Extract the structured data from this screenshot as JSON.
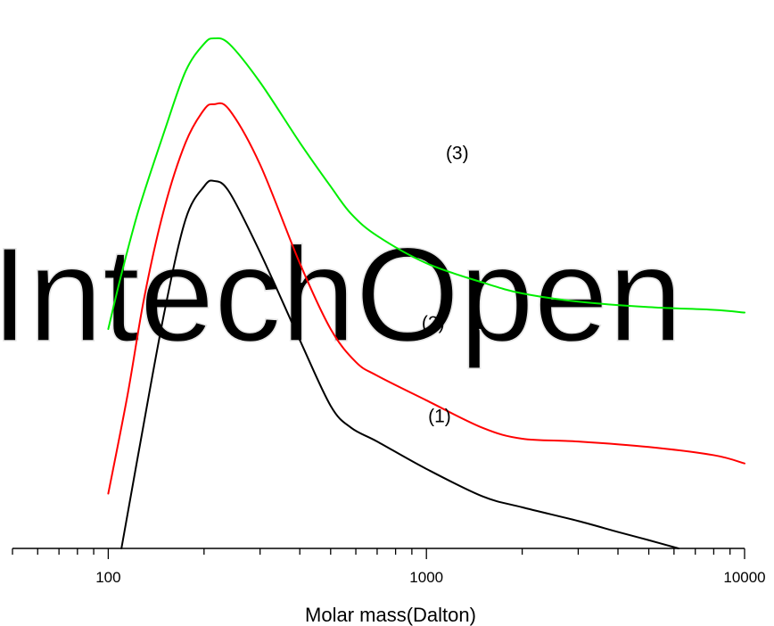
{
  "watermark": "IntechOpen",
  "chart_data": {
    "type": "line",
    "xscale": "log",
    "xlim": [
      50,
      10000
    ],
    "xlabel": "Molar mass(Dalton)",
    "ylabel": "",
    "x_tick_labels": [
      "100",
      "1000",
      "10000"
    ],
    "x_ticks": [
      100,
      1000,
      10000
    ],
    "y_axis_visible": false,
    "grid": false,
    "ylim": [
      0,
      1.0
    ],
    "series": [
      {
        "name": "(1)",
        "color": "#000000",
        "points": [
          [
            110,
            0.0
          ],
          [
            125,
            0.18
          ],
          [
            150,
            0.43
          ],
          [
            175,
            0.6
          ],
          [
            200,
            0.66
          ],
          [
            215,
            0.67
          ],
          [
            240,
            0.65
          ],
          [
            300,
            0.54
          ],
          [
            400,
            0.38
          ],
          [
            500,
            0.26
          ],
          [
            580,
            0.22
          ],
          [
            700,
            0.195
          ],
          [
            1000,
            0.145
          ],
          [
            1500,
            0.095
          ],
          [
            2000,
            0.075
          ],
          [
            3000,
            0.05
          ],
          [
            4000,
            0.03
          ],
          [
            5000,
            0.015
          ],
          [
            6200,
            0.0
          ]
        ]
      },
      {
        "name": "(2)",
        "color": "#ff0000",
        "points": [
          [
            100,
            0.1
          ],
          [
            115,
            0.28
          ],
          [
            130,
            0.46
          ],
          [
            150,
            0.62
          ],
          [
            175,
            0.74
          ],
          [
            200,
            0.8
          ],
          [
            215,
            0.81
          ],
          [
            240,
            0.8
          ],
          [
            300,
            0.7
          ],
          [
            400,
            0.52
          ],
          [
            500,
            0.4
          ],
          [
            600,
            0.34
          ],
          [
            700,
            0.315
          ],
          [
            1000,
            0.27
          ],
          [
            1500,
            0.22
          ],
          [
            2000,
            0.2
          ],
          [
            3000,
            0.195
          ],
          [
            5000,
            0.185
          ],
          [
            8000,
            0.17
          ],
          [
            10000,
            0.155
          ]
        ]
      },
      {
        "name": "(3)",
        "color": "#00ee00",
        "points": [
          [
            100,
            0.4
          ],
          [
            110,
            0.5
          ],
          [
            125,
            0.62
          ],
          [
            150,
            0.76
          ],
          [
            175,
            0.87
          ],
          [
            200,
            0.92
          ],
          [
            215,
            0.93
          ],
          [
            240,
            0.92
          ],
          [
            300,
            0.85
          ],
          [
            400,
            0.74
          ],
          [
            500,
            0.66
          ],
          [
            580,
            0.61
          ],
          [
            700,
            0.57
          ],
          [
            1000,
            0.52
          ],
          [
            1500,
            0.485
          ],
          [
            2000,
            0.465
          ],
          [
            3000,
            0.45
          ],
          [
            5000,
            0.44
          ],
          [
            8000,
            0.435
          ],
          [
            10000,
            0.43
          ]
        ]
      }
    ],
    "annotations": [
      {
        "text": "(1)",
        "x": 1100,
        "y": 0.23
      },
      {
        "text": "(2)",
        "x": 1050,
        "y": 0.4
      },
      {
        "text": "(3)",
        "x": 1250,
        "y": 0.71
      }
    ]
  }
}
